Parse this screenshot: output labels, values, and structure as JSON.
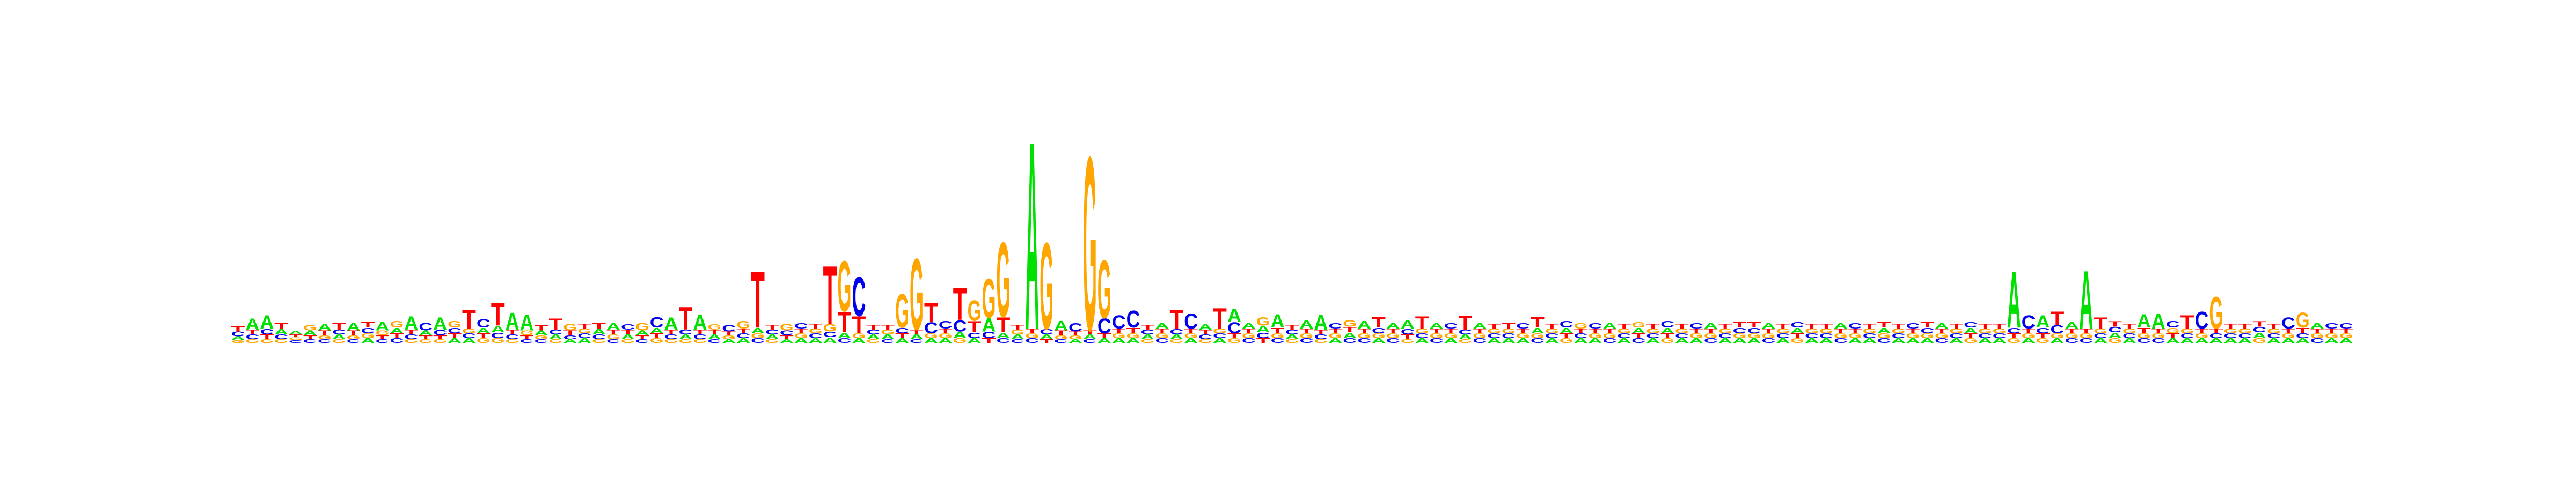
{
  "chart_data": {
    "type": "sequence-logo",
    "title": "",
    "xlabel": "",
    "ylabel": "",
    "alphabet": [
      "A",
      "C",
      "G",
      "T"
    ],
    "colors": {
      "A": "#00e000",
      "C": "#0000ee",
      "G": "#ffa500",
      "T": "#ff0000"
    },
    "ylim": [
      0,
      2
    ],
    "positions": [
      {
        "A": 0.04,
        "C": 0.05,
        "G": 0.03,
        "T": 0.06
      },
      {
        "A": 0.12,
        "C": 0.05,
        "G": 0.04,
        "T": 0.05
      },
      {
        "A": 0.14,
        "C": 0.06,
        "G": 0.04,
        "T": 0.05
      },
      {
        "A": 0.06,
        "C": 0.05,
        "G": 0.04,
        "T": 0.06
      },
      {
        "A": 0.04,
        "C": 0.03,
        "G": 0.03,
        "T": 0.03
      },
      {
        "A": 0.05,
        "C": 0.04,
        "G": 0.06,
        "T": 0.04
      },
      {
        "A": 0.07,
        "C": 0.04,
        "G": 0.04,
        "T": 0.05
      },
      {
        "A": 0.05,
        "C": 0.05,
        "G": 0.04,
        "T": 0.07
      },
      {
        "A": 0.08,
        "C": 0.04,
        "G": 0.04,
        "T": 0.05
      },
      {
        "A": 0.05,
        "C": 0.06,
        "G": 0.05,
        "T": 0.06
      },
      {
        "A": 0.09,
        "C": 0.04,
        "G": 0.05,
        "T": 0.04
      },
      {
        "A": 0.06,
        "C": 0.05,
        "G": 0.07,
        "T": 0.05
      },
      {
        "A": 0.14,
        "C": 0.05,
        "G": 0.04,
        "T": 0.05
      },
      {
        "A": 0.05,
        "C": 0.08,
        "G": 0.04,
        "T": 0.04
      },
      {
        "A": 0.13,
        "C": 0.06,
        "G": 0.04,
        "T": 0.04
      },
      {
        "A": 0.05,
        "C": 0.06,
        "G": 0.07,
        "T": 0.05
      },
      {
        "A": 0.05,
        "C": 0.05,
        "G": 0.05,
        "T": 0.2
      },
      {
        "A": 0.06,
        "C": 0.09,
        "G": 0.05,
        "T": 0.05
      },
      {
        "A": 0.07,
        "C": 0.06,
        "G": 0.05,
        "T": 0.24
      },
      {
        "A": 0.18,
        "C": 0.05,
        "G": 0.04,
        "T": 0.05
      },
      {
        "A": 0.17,
        "C": 0.04,
        "G": 0.05,
        "T": 0.04
      },
      {
        "A": 0.05,
        "C": 0.04,
        "G": 0.04,
        "T": 0.06
      },
      {
        "A": 0.05,
        "C": 0.05,
        "G": 0.04,
        "T": 0.12
      },
      {
        "A": 0.04,
        "C": 0.04,
        "G": 0.07,
        "T": 0.05
      },
      {
        "A": 0.05,
        "C": 0.05,
        "G": 0.05,
        "T": 0.05
      },
      {
        "A": 0.06,
        "C": 0.05,
        "G": 0.04,
        "T": 0.06
      },
      {
        "A": 0.07,
        "C": 0.04,
        "G": 0.05,
        "T": 0.05
      },
      {
        "A": 0.05,
        "C": 0.06,
        "G": 0.04,
        "T": 0.05
      },
      {
        "A": 0.05,
        "C": 0.04,
        "G": 0.08,
        "T": 0.04
      },
      {
        "A": 0.06,
        "C": 0.11,
        "G": 0.05,
        "T": 0.05
      },
      {
        "A": 0.13,
        "C": 0.05,
        "G": 0.04,
        "T": 0.05
      },
      {
        "A": 0.05,
        "C": 0.05,
        "G": 0.04,
        "T": 0.24
      },
      {
        "A": 0.16,
        "C": 0.05,
        "G": 0.04,
        "T": 0.05
      },
      {
        "A": 0.05,
        "C": 0.04,
        "G": 0.06,
        "T": 0.05
      },
      {
        "A": 0.04,
        "C": 0.07,
        "G": 0.04,
        "T": 0.04
      },
      {
        "A": 0.05,
        "C": 0.05,
        "G": 0.08,
        "T": 0.05
      },
      {
        "A": 0.06,
        "C": 0.05,
        "G": 0.05,
        "T": 0.6
      },
      {
        "A": 0.05,
        "C": 0.05,
        "G": 0.04,
        "T": 0.05
      },
      {
        "A": 0.04,
        "C": 0.05,
        "G": 0.07,
        "T": 0.04
      },
      {
        "A": 0.05,
        "C": 0.06,
        "G": 0.05,
        "T": 0.05
      },
      {
        "A": 0.05,
        "C": 0.05,
        "G": 0.05,
        "T": 0.05
      },
      {
        "A": 0.06,
        "C": 0.06,
        "G": 0.08,
        "T": 0.62
      },
      {
        "A": 0.06,
        "C": 0.05,
        "G": 0.54,
        "T": 0.22
      },
      {
        "A": 0.05,
        "C": 0.42,
        "G": 0.05,
        "T": 0.18
      },
      {
        "A": 0.05,
        "C": 0.05,
        "G": 0.04,
        "T": 0.05
      },
      {
        "A": 0.05,
        "C": 0.04,
        "G": 0.05,
        "T": 0.05
      },
      {
        "A": 0.05,
        "C": 0.06,
        "G": 0.36,
        "T": 0.05
      },
      {
        "A": 0.05,
        "C": 0.04,
        "G": 0.76,
        "T": 0.05
      },
      {
        "A": 0.05,
        "C": 0.12,
        "G": 0.05,
        "T": 0.2
      },
      {
        "A": 0.05,
        "C": 0.08,
        "G": 0.05,
        "T": 0.05
      },
      {
        "A": 0.07,
        "C": 0.12,
        "G": 0.05,
        "T": 0.34
      },
      {
        "A": 0.05,
        "C": 0.06,
        "G": 0.22,
        "T": 0.12
      },
      {
        "A": 0.14,
        "C": 0.07,
        "G": 0.42,
        "T": 0.05
      },
      {
        "A": 0.06,
        "C": 0.05,
        "G": 0.8,
        "T": 0.16
      },
      {
        "A": 0.05,
        "C": 0.04,
        "G": 0.05,
        "T": 0.05
      },
      {
        "A": 2.0,
        "C": 0.05,
        "G": 0.05,
        "T": 0.05
      },
      {
        "A": 0.05,
        "C": 0.06,
        "G": 0.92,
        "T": 0.04
      },
      {
        "A": 0.1,
        "C": 0.04,
        "G": 0.04,
        "T": 0.05
      },
      {
        "A": 0.04,
        "C": 0.09,
        "G": 0.04,
        "T": 0.04
      },
      {
        "A": 0.05,
        "C": 0.04,
        "G": 1.85,
        "T": 0.05
      },
      {
        "A": 0.05,
        "C": 0.16,
        "G": 0.62,
        "T": 0.05
      },
      {
        "A": 0.05,
        "C": 0.14,
        "G": 0.05,
        "T": 0.05
      },
      {
        "A": 0.05,
        "C": 0.18,
        "G": 0.05,
        "T": 0.06
      },
      {
        "A": 0.05,
        "C": 0.05,
        "G": 0.04,
        "T": 0.05
      },
      {
        "A": 0.06,
        "C": 0.05,
        "G": 0.05,
        "T": 0.05
      },
      {
        "A": 0.05,
        "C": 0.06,
        "G": 0.04,
        "T": 0.2
      },
      {
        "A": 0.05,
        "C": 0.16,
        "G": 0.05,
        "T": 0.05
      },
      {
        "A": 0.06,
        "C": 0.05,
        "G": 0.04,
        "T": 0.05
      },
      {
        "A": 0.05,
        "C": 0.05,
        "G": 0.05,
        "T": 0.22
      },
      {
        "A": 0.14,
        "C": 0.12,
        "G": 0.05,
        "T": 0.05
      },
      {
        "A": 0.06,
        "C": 0.05,
        "G": 0.05,
        "T": 0.05
      },
      {
        "A": 0.07,
        "C": 0.06,
        "G": 0.09,
        "T": 0.05
      },
      {
        "A": 0.14,
        "C": 0.05,
        "G": 0.05,
        "T": 0.06
      },
      {
        "A": 0.05,
        "C": 0.05,
        "G": 0.04,
        "T": 0.05
      },
      {
        "A": 0.09,
        "C": 0.05,
        "G": 0.05,
        "T": 0.05
      },
      {
        "A": 0.16,
        "C": 0.05,
        "G": 0.04,
        "T": 0.05
      },
      {
        "A": 0.05,
        "C": 0.06,
        "G": 0.05,
        "T": 0.05
      },
      {
        "A": 0.06,
        "C": 0.05,
        "G": 0.07,
        "T": 0.06
      },
      {
        "A": 0.08,
        "C": 0.05,
        "G": 0.05,
        "T": 0.05
      },
      {
        "A": 0.05,
        "C": 0.06,
        "G": 0.05,
        "T": 0.11
      },
      {
        "A": 0.06,
        "C": 0.05,
        "G": 0.05,
        "T": 0.05
      },
      {
        "A": 0.09,
        "C": 0.06,
        "G": 0.04,
        "T": 0.05
      },
      {
        "A": 0.05,
        "C": 0.05,
        "G": 0.05,
        "T": 0.13
      },
      {
        "A": 0.06,
        "C": 0.05,
        "G": 0.05,
        "T": 0.05
      },
      {
        "A": 0.05,
        "C": 0.06,
        "G": 0.05,
        "T": 0.05
      },
      {
        "A": 0.05,
        "C": 0.05,
        "G": 0.04,
        "T": 0.15
      },
      {
        "A": 0.06,
        "C": 0.05,
        "G": 0.05,
        "T": 0.05
      },
      {
        "A": 0.05,
        "C": 0.05,
        "G": 0.05,
        "T": 0.05
      },
      {
        "A": 0.05,
        "C": 0.05,
        "G": 0.05,
        "T": 0.06
      },
      {
        "A": 0.05,
        "C": 0.06,
        "G": 0.05,
        "T": 0.05
      },
      {
        "A": 0.06,
        "C": 0.05,
        "G": 0.05,
        "T": 0.11
      },
      {
        "A": 0.05,
        "C": 0.05,
        "G": 0.05,
        "T": 0.05
      },
      {
        "A": 0.06,
        "C": 0.07,
        "G": 0.05,
        "T": 0.05
      },
      {
        "A": 0.05,
        "C": 0.05,
        "G": 0.06,
        "T": 0.05
      },
      {
        "A": 0.05,
        "C": 0.06,
        "G": 0.05,
        "T": 0.05
      },
      {
        "A": 0.06,
        "C": 0.05,
        "G": 0.05,
        "T": 0.05
      },
      {
        "A": 0.05,
        "C": 0.05,
        "G": 0.05,
        "T": 0.05
      },
      {
        "A": 0.06,
        "C": 0.05,
        "G": 0.06,
        "T": 0.05
      },
      {
        "A": 0.05,
        "C": 0.05,
        "G": 0.05,
        "T": 0.05
      },
      {
        "A": 0.06,
        "C": 0.07,
        "G": 0.05,
        "T": 0.05
      },
      {
        "A": 0.05,
        "C": 0.05,
        "G": 0.05,
        "T": 0.05
      },
      {
        "A": 0.05,
        "C": 0.06,
        "G": 0.05,
        "T": 0.05
      },
      {
        "A": 0.06,
        "C": 0.05,
        "G": 0.05,
        "T": 0.05
      },
      {
        "A": 0.05,
        "C": 0.05,
        "G": 0.05,
        "T": 0.05
      },
      {
        "A": 0.05,
        "C": 0.06,
        "G": 0.05,
        "T": 0.06
      },
      {
        "A": 0.05,
        "C": 0.06,
        "G": 0.05,
        "T": 0.06
      },
      {
        "A": 0.06,
        "C": 0.05,
        "G": 0.05,
        "T": 0.05
      },
      {
        "A": 0.05,
        "C": 0.05,
        "G": 0.05,
        "T": 0.05
      },
      {
        "A": 0.06,
        "C": 0.06,
        "G": 0.05,
        "T": 0.05
      },
      {
        "A": 0.05,
        "C": 0.05,
        "G": 0.05,
        "T": 0.05
      },
      {
        "A": 0.05,
        "C": 0.05,
        "G": 0.05,
        "T": 0.05
      },
      {
        "A": 0.06,
        "C": 0.05,
        "G": 0.05,
        "T": 0.05
      },
      {
        "A": 0.05,
        "C": 0.06,
        "G": 0.05,
        "T": 0.05
      },
      {
        "A": 0.05,
        "C": 0.05,
        "G": 0.05,
        "T": 0.05
      },
      {
        "A": 0.06,
        "C": 0.05,
        "G": 0.05,
        "T": 0.06
      },
      {
        "A": 0.05,
        "C": 0.05,
        "G": 0.05,
        "T": 0.05
      },
      {
        "A": 0.05,
        "C": 0.06,
        "G": 0.05,
        "T": 0.05
      },
      {
        "A": 0.05,
        "C": 0.06,
        "G": 0.05,
        "T": 0.06
      },
      {
        "A": 0.06,
        "C": 0.05,
        "G": 0.05,
        "T": 0.05
      },
      {
        "A": 0.05,
        "C": 0.05,
        "G": 0.05,
        "T": 0.05
      },
      {
        "A": 0.06,
        "C": 0.06,
        "G": 0.05,
        "T": 0.05
      },
      {
        "A": 0.05,
        "C": 0.05,
        "G": 0.05,
        "T": 0.05
      },
      {
        "A": 0.05,
        "C": 0.05,
        "G": 0.05,
        "T": 0.05
      },
      {
        "A": 0.6,
        "C": 0.06,
        "G": 0.05,
        "T": 0.05
      },
      {
        "A": 0.05,
        "C": 0.14,
        "G": 0.05,
        "T": 0.05
      },
      {
        "A": 0.13,
        "C": 0.06,
        "G": 0.05,
        "T": 0.05
      },
      {
        "A": 0.05,
        "C": 0.09,
        "G": 0.05,
        "T": 0.14
      },
      {
        "A": 0.07,
        "C": 0.05,
        "G": 0.05,
        "T": 0.05
      },
      {
        "A": 0.62,
        "C": 0.05,
        "G": 0.05,
        "T": 0.05
      },
      {
        "A": 0.05,
        "C": 0.05,
        "G": 0.05,
        "T": 0.12
      },
      {
        "A": 0.06,
        "C": 0.06,
        "G": 0.05,
        "T": 0.06
      },
      {
        "A": 0.05,
        "C": 0.05,
        "G": 0.05,
        "T": 0.05
      },
      {
        "A": 0.14,
        "C": 0.05,
        "G": 0.05,
        "T": 0.06
      },
      {
        "A": 0.16,
        "C": 0.05,
        "G": 0.05,
        "T": 0.05
      },
      {
        "A": 0.05,
        "C": 0.07,
        "G": 0.06,
        "T": 0.05
      },
      {
        "A": 0.05,
        "C": 0.05,
        "G": 0.05,
        "T": 0.14
      },
      {
        "A": 0.05,
        "C": 0.18,
        "G": 0.05,
        "T": 0.05
      },
      {
        "A": 0.05,
        "C": 0.05,
        "G": 0.34,
        "T": 0.05
      },
      {
        "A": 0.05,
        "C": 0.05,
        "G": 0.05,
        "T": 0.05
      },
      {
        "A": 0.05,
        "C": 0.05,
        "G": 0.05,
        "T": 0.05
      },
      {
        "A": 0.06,
        "C": 0.06,
        "G": 0.05,
        "T": 0.06
      },
      {
        "A": 0.05,
        "C": 0.05,
        "G": 0.05,
        "T": 0.05
      },
      {
        "A": 0.05,
        "C": 0.12,
        "G": 0.05,
        "T": 0.05
      },
      {
        "A": 0.05,
        "C": 0.05,
        "G": 0.16,
        "T": 0.06
      },
      {
        "A": 0.06,
        "C": 0.05,
        "G": 0.05,
        "T": 0.05
      },
      {
        "A": 0.05,
        "C": 0.06,
        "G": 0.05,
        "T": 0.05
      },
      {
        "A": 0.05,
        "C": 0.06,
        "G": 0.05,
        "T": 0.05
      }
    ]
  }
}
